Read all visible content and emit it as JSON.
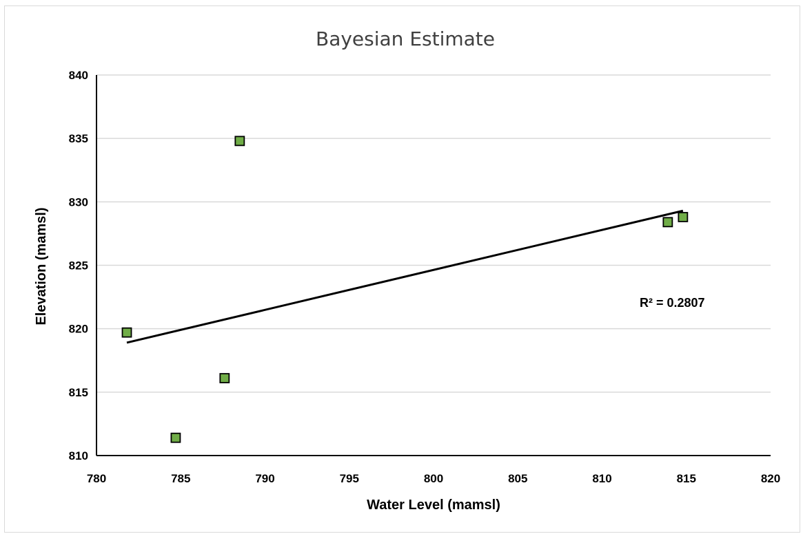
{
  "chart_data": {
    "type": "scatter",
    "title": "Bayesian Estimate",
    "xlabel": "Water Level (mamsl)",
    "ylabel": "Elevation (mamsl)",
    "xlim": [
      780,
      820
    ],
    "ylim": [
      810,
      840
    ],
    "x_ticks": [
      "780",
      "785",
      "790",
      "795",
      "800",
      "805",
      "810",
      "815",
      "820"
    ],
    "y_ticks": [
      "810",
      "815",
      "820",
      "825",
      "830",
      "835",
      "840"
    ],
    "grid": "horizontal",
    "series": [
      {
        "points": [
          {
            "x": 781.8,
            "y": 819.7
          },
          {
            "x": 784.7,
            "y": 811.4
          },
          {
            "x": 787.6,
            "y": 816.1
          },
          {
            "x": 788.5,
            "y": 834.8
          },
          {
            "x": 813.9,
            "y": 828.4
          },
          {
            "x": 814.8,
            "y": 828.8
          }
        ],
        "marker_color": "#70ad47",
        "marker_edge": "#000000"
      }
    ],
    "trendline": {
      "from": {
        "x": 781.8,
        "y": 818.9
      },
      "to": {
        "x": 814.8,
        "y": 829.3
      },
      "color": "#000000",
      "annotation": "R² = 0.2807"
    }
  }
}
